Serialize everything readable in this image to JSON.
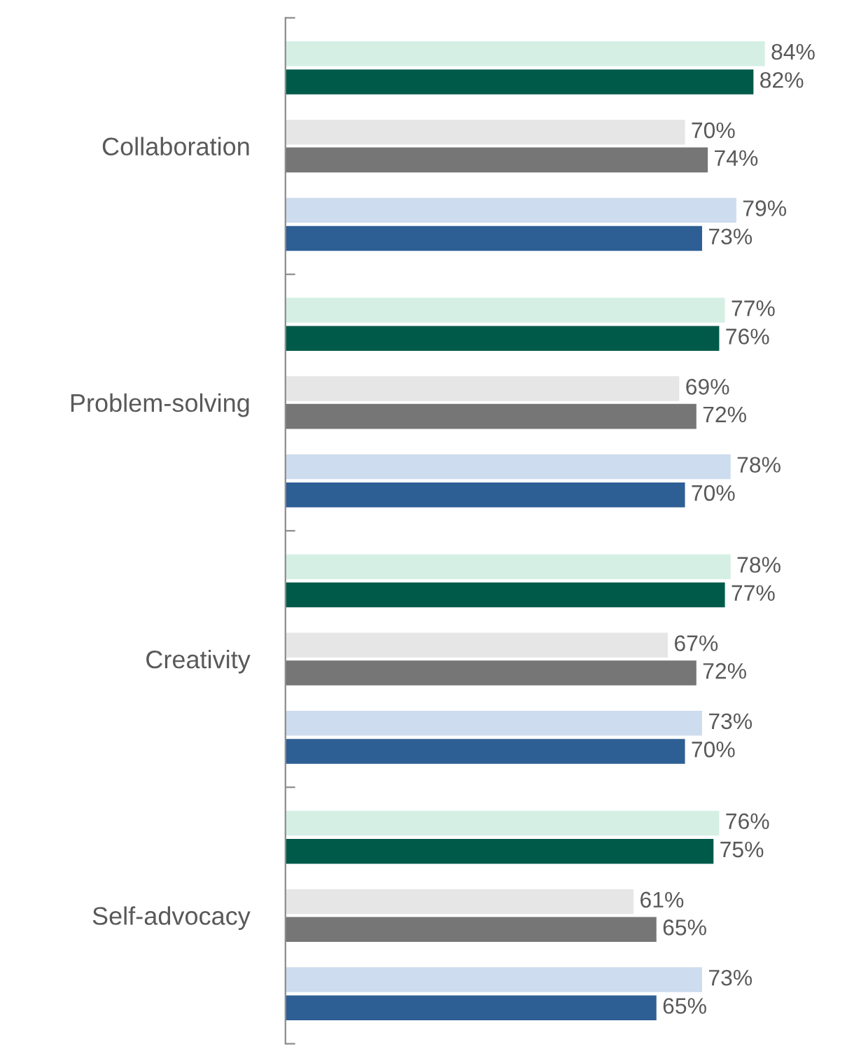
{
  "chart_data": {
    "type": "bar",
    "orientation": "horizontal",
    "categories": [
      "Collaboration",
      "Problem-solving",
      "Creativity",
      "Self-advocacy"
    ],
    "series": [
      {
        "color": "#d5efe5",
        "values": [
          84,
          77,
          78,
          76
        ],
        "value_labels": [
          "84%",
          "77%",
          "78%",
          "76%"
        ]
      },
      {
        "color": "#005a4a",
        "values": [
          82,
          76,
          77,
          75
        ],
        "value_labels": [
          "82%",
          "76%",
          "77%",
          "75%"
        ]
      },
      {
        "color": "#e6e6e6",
        "values": [
          70,
          69,
          67,
          61
        ],
        "value_labels": [
          "70%",
          "69%",
          "67%",
          "61%"
        ]
      },
      {
        "color": "#767676",
        "values": [
          74,
          72,
          72,
          65
        ],
        "value_labels": [
          "74%",
          "72%",
          "72%",
          "65%"
        ]
      },
      {
        "color": "#cddcee",
        "values": [
          79,
          78,
          73,
          73
        ],
        "value_labels": [
          "79%",
          "78%",
          "73%",
          "73%"
        ]
      },
      {
        "color": "#2e5f94",
        "values": [
          73,
          70,
          70,
          65
        ],
        "value_labels": [
          "73%",
          "70%",
          "70%",
          "65%"
        ]
      }
    ],
    "grid": false,
    "legend": false
  }
}
